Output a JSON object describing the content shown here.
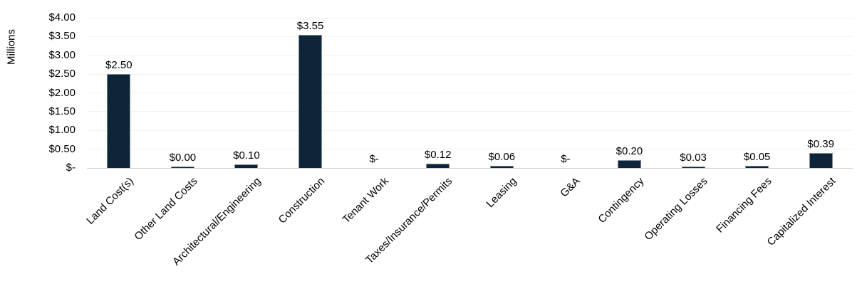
{
  "chart_data": {
    "type": "bar",
    "title": "",
    "xlabel": "",
    "ylabel": "Millions",
    "categories": [
      "Land Cost(s)",
      "Other Land Costs",
      "Architectural/Engineering",
      "Construction",
      "Tenant Work",
      "Taxes/Insurance/Permits",
      "Leasing",
      "G&A",
      "Contingency",
      "Operating Losses",
      "Financing Fees",
      "Capitalized Interest"
    ],
    "values": [
      2.5,
      0.0,
      0.1,
      3.55,
      0,
      0.12,
      0.06,
      0,
      0.2,
      0.03,
      0.05,
      0.39
    ],
    "value_labels": [
      "$2.50",
      "$0.00",
      "$0.10",
      "$3.55",
      "$-",
      "$0.12",
      "$0.06",
      "$-",
      "$0.20",
      "$0.03",
      "$0.05",
      "$0.39"
    ],
    "y_tick_labels": [
      "$4.00",
      "$3.50",
      "$3.00",
      "$2.50",
      "$2.00",
      "$1.50",
      "$1.00",
      "$0.50",
      "$-"
    ],
    "y_tick_values": [
      4.0,
      3.5,
      3.0,
      2.5,
      2.0,
      1.5,
      1.0,
      0.5,
      0
    ],
    "ylim": [
      0,
      4
    ],
    "grid": true,
    "legend_position": "none",
    "colors": {
      "bar_fill": "#0e2438",
      "bar_border": "#7d8fa1",
      "gridline": "#f2f2f2",
      "axis_line": "#d0d0d0",
      "text": "#000000"
    }
  }
}
